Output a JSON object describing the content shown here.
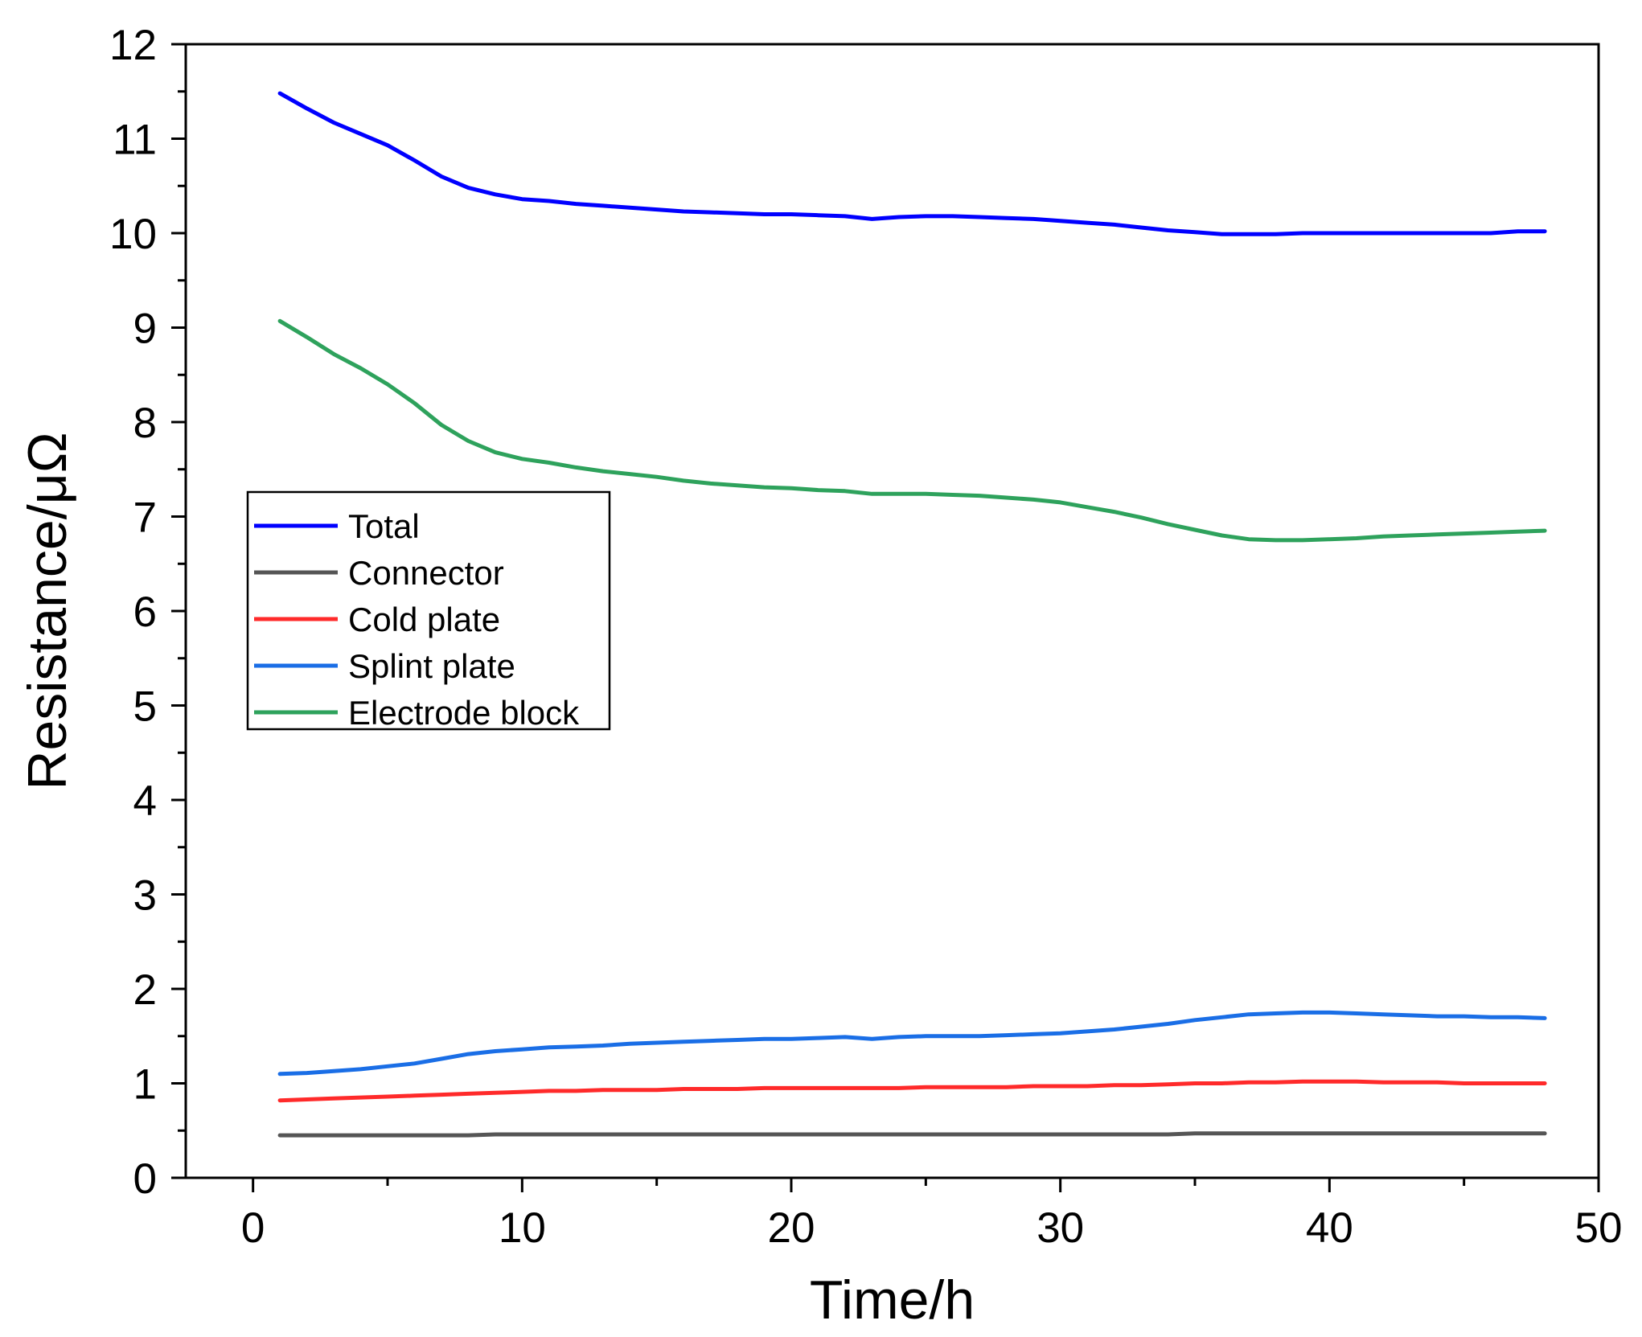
{
  "chart_data": {
    "type": "line",
    "title": "",
    "xlabel": "Time/h",
    "ylabel": "Resistance/μΩ",
    "xlim": [
      -2.5,
      50
    ],
    "ylim": [
      0,
      12
    ],
    "x_major_ticks": [
      0,
      10,
      20,
      30,
      40,
      50
    ],
    "x_tick_labels": [
      "0",
      "10",
      "20",
      "30",
      "40",
      "50"
    ],
    "x_minor_ticks": [
      5,
      15,
      25,
      35,
      45
    ],
    "y_major_ticks": [
      0,
      1,
      2,
      3,
      4,
      5,
      6,
      7,
      8,
      9,
      10,
      11,
      12
    ],
    "y_tick_labels": [
      "0",
      "1",
      "2",
      "3",
      "4",
      "5",
      "6",
      "7",
      "8",
      "9",
      "10",
      "11",
      "12"
    ],
    "y_minor_step": 0.5,
    "grid": false,
    "legend_position": "center-left",
    "x": [
      1,
      2,
      3,
      4,
      5,
      6,
      7,
      8,
      9,
      10,
      11,
      12,
      13,
      14,
      15,
      16,
      17,
      18,
      19,
      20,
      21,
      22,
      23,
      24,
      25,
      26,
      27,
      28,
      29,
      30,
      31,
      32,
      33,
      34,
      35,
      36,
      37,
      38,
      39,
      40,
      41,
      42,
      43,
      44,
      45,
      46,
      47,
      48
    ],
    "series": [
      {
        "name": "Total",
        "color": "#0000ff",
        "values": [
          11.48,
          11.32,
          11.17,
          11.05,
          10.93,
          10.77,
          10.6,
          10.48,
          10.41,
          10.36,
          10.34,
          10.31,
          10.29,
          10.27,
          10.25,
          10.23,
          10.22,
          10.21,
          10.2,
          10.2,
          10.19,
          10.18,
          10.15,
          10.17,
          10.18,
          10.18,
          10.17,
          10.16,
          10.15,
          10.13,
          10.11,
          10.09,
          10.06,
          10.03,
          10.01,
          9.99,
          9.99,
          9.99,
          10.0,
          10.0,
          10.0,
          10.0,
          10.0,
          10.0,
          10.0,
          10.0,
          10.02,
          10.02
        ]
      },
      {
        "name": "Connector",
        "color": "#555555",
        "values": [
          0.45,
          0.45,
          0.45,
          0.45,
          0.45,
          0.45,
          0.45,
          0.45,
          0.46,
          0.46,
          0.46,
          0.46,
          0.46,
          0.46,
          0.46,
          0.46,
          0.46,
          0.46,
          0.46,
          0.46,
          0.46,
          0.46,
          0.46,
          0.46,
          0.46,
          0.46,
          0.46,
          0.46,
          0.46,
          0.46,
          0.46,
          0.46,
          0.46,
          0.46,
          0.47,
          0.47,
          0.47,
          0.47,
          0.47,
          0.47,
          0.47,
          0.47,
          0.47,
          0.47,
          0.47,
          0.47,
          0.47,
          0.47
        ]
      },
      {
        "name": "Cold plate",
        "color": "#ff2a2a",
        "values": [
          0.82,
          0.83,
          0.84,
          0.85,
          0.86,
          0.87,
          0.88,
          0.89,
          0.9,
          0.91,
          0.92,
          0.92,
          0.93,
          0.93,
          0.93,
          0.94,
          0.94,
          0.94,
          0.95,
          0.95,
          0.95,
          0.95,
          0.95,
          0.95,
          0.96,
          0.96,
          0.96,
          0.96,
          0.97,
          0.97,
          0.97,
          0.98,
          0.98,
          0.99,
          1.0,
          1.0,
          1.01,
          1.01,
          1.02,
          1.02,
          1.02,
          1.01,
          1.01,
          1.01,
          1.0,
          1.0,
          1.0,
          1.0
        ]
      },
      {
        "name": "Splint plate",
        "color": "#1a6ee6",
        "values": [
          1.1,
          1.11,
          1.13,
          1.15,
          1.18,
          1.21,
          1.26,
          1.31,
          1.34,
          1.36,
          1.38,
          1.39,
          1.4,
          1.42,
          1.43,
          1.44,
          1.45,
          1.46,
          1.47,
          1.47,
          1.48,
          1.49,
          1.47,
          1.49,
          1.5,
          1.5,
          1.5,
          1.51,
          1.52,
          1.53,
          1.55,
          1.57,
          1.6,
          1.63,
          1.67,
          1.7,
          1.73,
          1.74,
          1.75,
          1.75,
          1.74,
          1.73,
          1.72,
          1.71,
          1.71,
          1.7,
          1.7,
          1.69
        ]
      },
      {
        "name": "Electrode block",
        "color": "#2ea25c",
        "values": [
          9.07,
          8.9,
          8.72,
          8.57,
          8.4,
          8.2,
          7.97,
          7.8,
          7.68,
          7.61,
          7.57,
          7.52,
          7.48,
          7.45,
          7.42,
          7.38,
          7.35,
          7.33,
          7.31,
          7.3,
          7.28,
          7.27,
          7.24,
          7.24,
          7.24,
          7.23,
          7.22,
          7.2,
          7.18,
          7.15,
          7.1,
          7.05,
          6.99,
          6.92,
          6.86,
          6.8,
          6.76,
          6.75,
          6.75,
          6.76,
          6.77,
          6.79,
          6.8,
          6.81,
          6.82,
          6.83,
          6.84,
          6.85
        ]
      }
    ]
  }
}
